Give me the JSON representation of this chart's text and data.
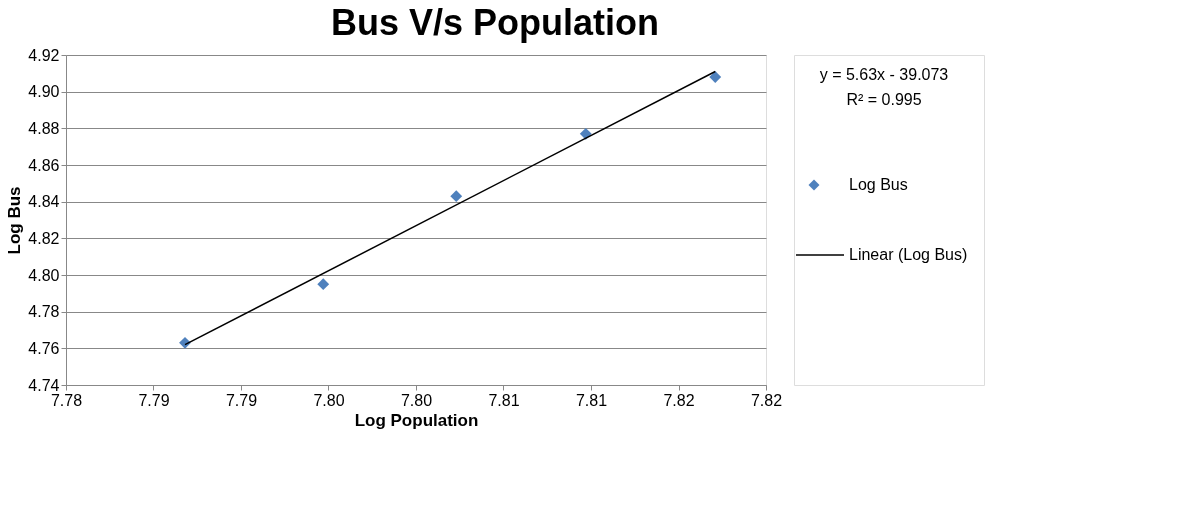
{
  "chart_data": {
    "type": "scatter",
    "title": "Bus V/s Population",
    "xlabel": "Log Population",
    "ylabel": "Log Bus",
    "xlim": [
      7.78,
      7.82
    ],
    "xticks": [
      7.78,
      {
        "value": 7.785,
        "label": "7.79"
      },
      7.79,
      {
        "value": 7.795,
        "label": "7.80"
      },
      {
        "value": 7.8,
        "label": "7.80"
      },
      {
        "value": 7.805,
        "label": "7.81"
      },
      7.81,
      {
        "value": 7.815,
        "label": "7.82"
      },
      7.82
    ],
    "ylim": [
      4.74,
      4.92
    ],
    "yticks": [
      4.74,
      4.76,
      4.78,
      {
        "value": 4.8,
        "label": "4.80"
      },
      4.82,
      4.84,
      4.86,
      4.88,
      {
        "value": 4.9,
        "label": "4.90"
      },
      4.92
    ],
    "grid": "y",
    "legend": "right",
    "annotations": [
      "y = 5.63x - 39.073",
      "R² = 0.995"
    ],
    "series": [
      {
        "name": "Log Bus",
        "marker": "diamond",
        "color": "#4f81bd",
        "x": [
          7.7868,
          7.7947,
          7.8023,
          7.8097,
          7.8171
        ],
        "values": [
          4.763,
          4.795,
          4.843,
          4.877,
          4.908
        ]
      },
      {
        "name": "Linear (Log Bus)",
        "type": "line",
        "color": "#000000",
        "x": [
          7.7868,
          7.8171
        ],
        "values": [
          4.762,
          4.911
        ]
      }
    ]
  }
}
